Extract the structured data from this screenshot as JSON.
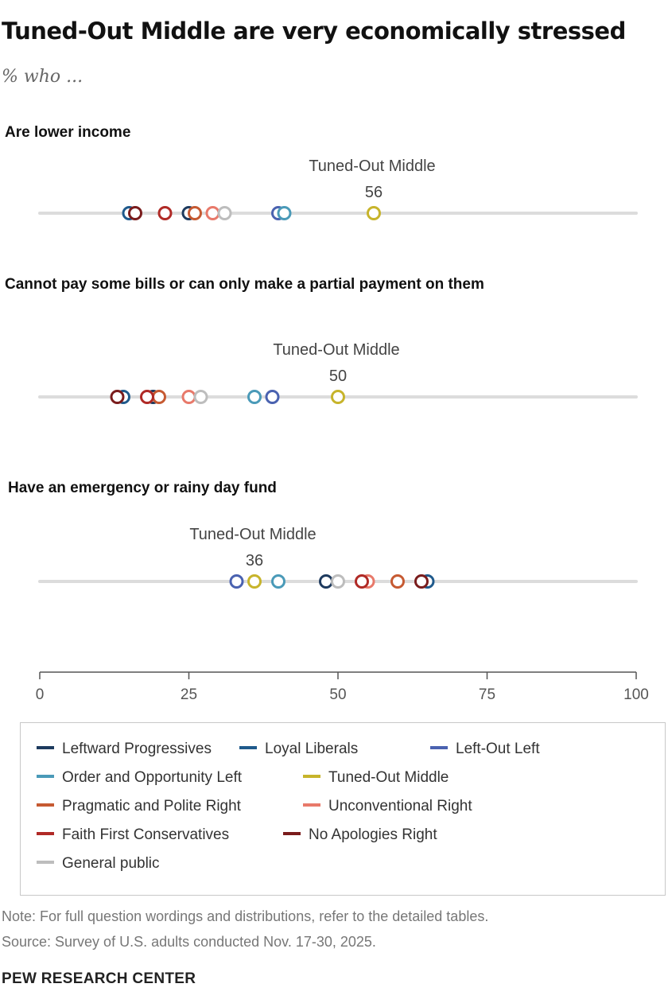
{
  "title": "Tuned-Out Middle are very economically stressed",
  "subtitle": "% who ...",
  "note": "Note: For full question wordings and distributions, refer to the detailed tables.",
  "source": "Source: Survey of U.S. adults conducted Nov. 17-30, 2025.",
  "brand": "PEW RESEARCH CENTER",
  "colors": {
    "Leftward Progressives": "#1d3a5e",
    "Loyal Liberals": "#1f5a8c",
    "Left-Out Left": "#4a62b0",
    "Order and Opportunity Left": "#4a9ab8",
    "Tuned-Out Middle": "#c7b42b",
    "Pragmatic and Polite Right": "#c65a32",
    "Unconventional Right": "#e8796a",
    "Faith First Conservatives": "#b02a26",
    "No Apologies Right": "#7a1c1c",
    "General public": "#bdbdbd"
  },
  "chart_data": {
    "type": "scatter",
    "xlim": [
      0,
      100
    ],
    "x_ticks": [
      0,
      25,
      50,
      75,
      100
    ],
    "highlight_series": "Tuned-Out Middle",
    "panels": [
      {
        "label": "Are lower income",
        "values": {
          "Leftward Progressives": 25,
          "Loyal Liberals": 15,
          "Left-Out Left": 40,
          "Order and Opportunity Left": 41,
          "Tuned-Out Middle": 56,
          "Pragmatic and Polite Right": 26,
          "Unconventional Right": 29,
          "Faith First Conservatives": 21,
          "No Apologies Right": 16,
          "General public": 31
        }
      },
      {
        "label": "Cannot pay some bills or can only make a partial payment on them",
        "values": {
          "Leftward Progressives": 19,
          "Loyal Liberals": 14,
          "Left-Out Left": 39,
          "Order and Opportunity Left": 36,
          "Tuned-Out Middle": 50,
          "Pragmatic and Polite Right": 20,
          "Unconventional Right": 25,
          "Faith First Conservatives": 18,
          "No Apologies Right": 13,
          "General public": 27
        }
      },
      {
        "label": "Have an emergency or rainy day fund",
        "values": {
          "Leftward Progressives": 48,
          "Loyal Liberals": 65,
          "Left-Out Left": 33,
          "Order and Opportunity Left": 40,
          "Tuned-Out Middle": 36,
          "Pragmatic and Polite Right": 60,
          "Unconventional Right": 55,
          "Faith First Conservatives": 54,
          "No Apologies Right": 64,
          "General public": 50
        }
      }
    ],
    "legend": [
      "Leftward Progressives",
      "Loyal Liberals",
      "Left-Out Left",
      "Order and Opportunity Left",
      "Tuned-Out Middle",
      "Pragmatic and Polite Right",
      "Unconventional Right",
      "Faith First Conservatives",
      "No Apologies Right",
      "General public"
    ]
  }
}
